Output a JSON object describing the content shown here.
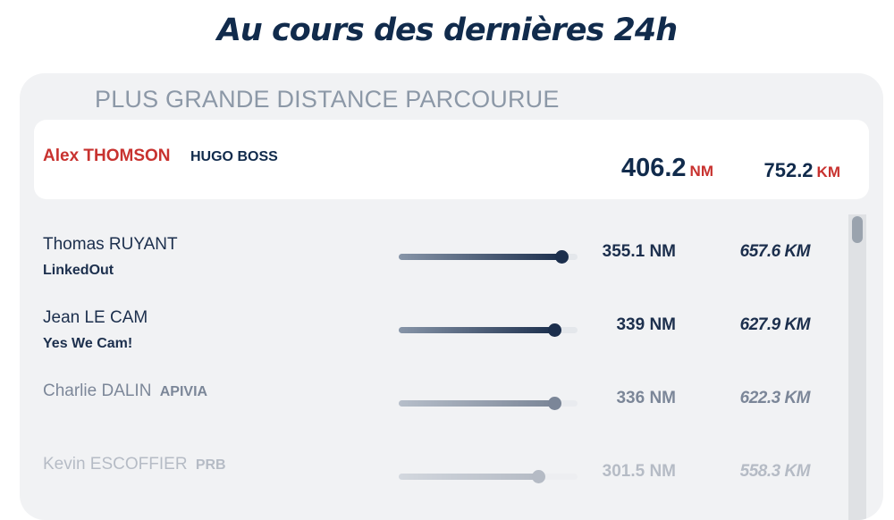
{
  "header": {
    "title": "Au cours des dernières 24h"
  },
  "card": {
    "title": "PLUS GRANDE DISTANCE PARCOURUE",
    "leader": {
      "skipper": "Alex THOMSON",
      "boat": "HUGO BOSS",
      "nm_value": "406.2",
      "nm_unit": "NM",
      "km_value": "752.2",
      "km_unit": "KM"
    },
    "rows": [
      {
        "skipper": "Thomas RUYANT",
        "boat": "LinkedOut",
        "nm": "355.1 NM",
        "km": "657.6 KM",
        "progress": 0.91
      },
      {
        "skipper": "Jean LE CAM",
        "boat": "Yes We Cam!",
        "nm": "339 NM",
        "km": "627.9 KM",
        "progress": 0.87
      },
      {
        "skipper": "Charlie DALIN",
        "boat": "APIVIA",
        "nm": "336 NM",
        "km": "622.3 KM",
        "progress": 0.87
      },
      {
        "skipper": "Kevin ESCOFFIER",
        "boat": "PRB",
        "nm": "301.5 NM",
        "km": "558.3 KM",
        "progress": 0.78
      }
    ]
  },
  "colors": {
    "navy": "#112b4c",
    "accent_red": "#c8322f",
    "card_bg": "#f1f2f4"
  }
}
